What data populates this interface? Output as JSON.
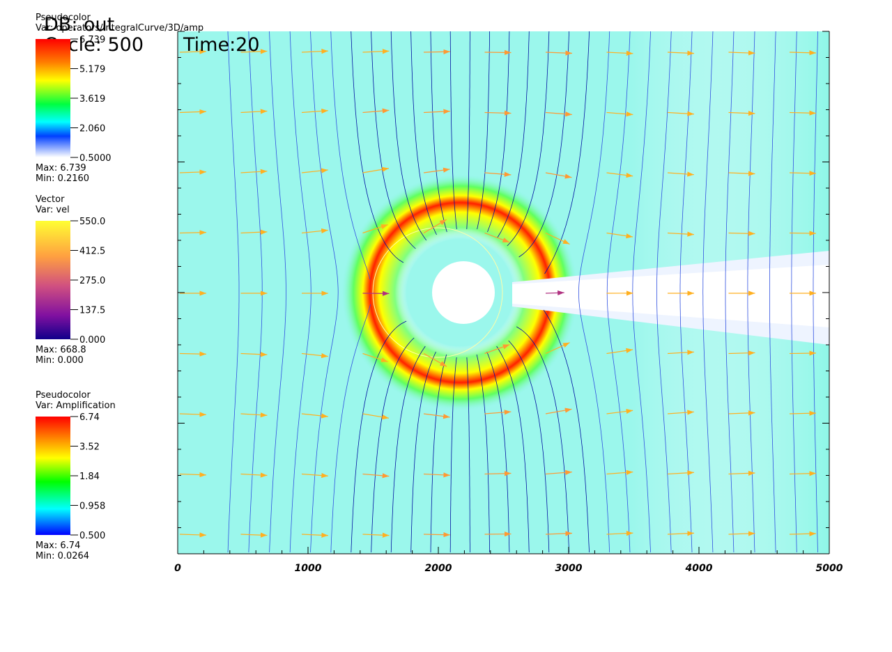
{
  "header": {
    "db": "DB: out",
    "cycle": "Cycle: 500",
    "time": "Time:20"
  },
  "legends": [
    {
      "plot": "Pseudocolor",
      "var": "Var: operators/IntegralCurve/3D/amp",
      "ticks": [
        "6.739",
        "5.179",
        "3.619",
        "2.060",
        "0.5000"
      ],
      "max": "Max: 6.739",
      "min": "Min: 0.2160"
    },
    {
      "plot": "Vector",
      "var": "Var: vel",
      "ticks": [
        "550.0",
        "412.5",
        "275.0",
        "137.5",
        "0.000"
      ],
      "max": "Max: 668.8",
      "min": "Min: 0.000"
    },
    {
      "plot": "Pseudocolor",
      "var": "Var: Amplification",
      "ticks": [
        "6.74",
        "3.52",
        "1.84",
        "0.958",
        "0.500"
      ],
      "max": "Max: 6.74",
      "min": "Min: 0.0264"
    }
  ],
  "x_axis": {
    "ticks": [
      "0",
      "1000",
      "2000",
      "3000",
      "4000",
      "5000"
    ]
  }
}
